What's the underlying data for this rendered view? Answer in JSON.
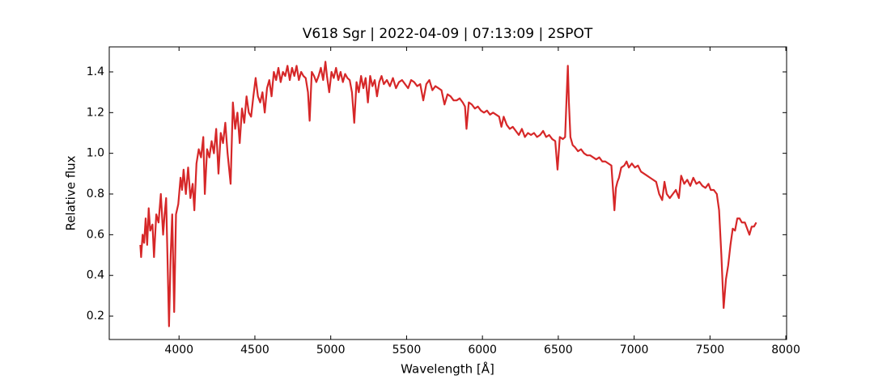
{
  "chart_data": {
    "type": "line",
    "title": "V618 Sgr | 2022-04-09 | 07:13:09 | 2SPOT",
    "xlabel": "Wavelength [Å]",
    "ylabel": "Relative flux",
    "color": "#d62728",
    "xlim": [
      3540,
      8005
    ],
    "ylim": [
      0.085,
      1.523
    ],
    "xticks": [
      4000,
      4500,
      5000,
      5500,
      6000,
      6500,
      7000,
      7500,
      8000
    ],
    "yticks": [
      0.2,
      0.4,
      0.6,
      0.8,
      {
        "value": 1,
        "label": "1.0"
      },
      1.2,
      1.4
    ],
    "x": [
      3745,
      3750,
      3760,
      3770,
      3780,
      3790,
      3800,
      3810,
      3825,
      3835,
      3850,
      3865,
      3880,
      3895,
      3905,
      3915,
      3925,
      3934,
      3945,
      3955,
      3968,
      3980,
      3995,
      4010,
      4020,
      4030,
      4045,
      4060,
      4075,
      4090,
      4101,
      4115,
      4130,
      4145,
      4160,
      4170,
      4185,
      4200,
      4215,
      4230,
      4245,
      4260,
      4275,
      4290,
      4305,
      4320,
      4340,
      4355,
      4370,
      4385,
      4400,
      4415,
      4430,
      4445,
      4460,
      4475,
      4490,
      4505,
      4520,
      4535,
      4550,
      4565,
      4580,
      4595,
      4610,
      4625,
      4640,
      4655,
      4670,
      4685,
      4700,
      4715,
      4730,
      4745,
      4760,
      4775,
      4790,
      4805,
      4820,
      4835,
      4850,
      4861,
      4875,
      4890,
      4905,
      4920,
      4935,
      4950,
      4965,
      4975,
      4990,
      5005,
      5020,
      5035,
      5050,
      5065,
      5080,
      5095,
      5110,
      5125,
      5140,
      5155,
      5170,
      5185,
      5200,
      5215,
      5230,
      5245,
      5260,
      5275,
      5290,
      5305,
      5320,
      5335,
      5350,
      5370,
      5390,
      5410,
      5430,
      5450,
      5470,
      5490,
      5510,
      5530,
      5550,
      5570,
      5590,
      5610,
      5630,
      5650,
      5670,
      5690,
      5710,
      5730,
      5750,
      5770,
      5790,
      5810,
      5830,
      5850,
      5870,
      5885,
      5895,
      5910,
      5930,
      5950,
      5970,
      5990,
      6010,
      6030,
      6050,
      6070,
      6090,
      6110,
      6125,
      6140,
      6160,
      6180,
      6200,
      6220,
      6240,
      6260,
      6280,
      6300,
      6320,
      6340,
      6360,
      6380,
      6400,
      6420,
      6440,
      6460,
      6480,
      6495,
      6510,
      6530,
      6545,
      6555,
      6563,
      6570,
      6580,
      6595,
      6610,
      6630,
      6650,
      6670,
      6690,
      6710,
      6730,
      6750,
      6770,
      6790,
      6810,
      6830,
      6850,
      6870,
      6880,
      6890,
      6900,
      6915,
      6935,
      6950,
      6965,
      6985,
      7005,
      7025,
      7045,
      7065,
      7085,
      7105,
      7125,
      7145,
      7165,
      7185,
      7200,
      7215,
      7235,
      7255,
      7275,
      7295,
      7310,
      7330,
      7350,
      7370,
      7390,
      7410,
      7430,
      7450,
      7470,
      7490,
      7505,
      7525,
      7545,
      7560,
      7575,
      7590,
      7605,
      7620,
      7635,
      7650,
      7665,
      7680,
      7695,
      7710,
      7730,
      7745,
      7760,
      7775,
      7790,
      7805
    ],
    "values": [
      0.55,
      0.49,
      0.6,
      0.56,
      0.68,
      0.55,
      0.73,
      0.62,
      0.65,
      0.49,
      0.7,
      0.66,
      0.8,
      0.6,
      0.7,
      0.78,
      0.45,
      0.15,
      0.5,
      0.7,
      0.22,
      0.7,
      0.75,
      0.88,
      0.82,
      0.92,
      0.8,
      0.93,
      0.78,
      0.85,
      0.72,
      0.95,
      1.02,
      0.98,
      1.08,
      0.8,
      1.02,
      0.98,
      1.06,
      1.0,
      1.12,
      0.9,
      1.1,
      1.05,
      1.15,
      1.0,
      0.85,
      1.25,
      1.12,
      1.2,
      1.05,
      1.22,
      1.15,
      1.28,
      1.2,
      1.18,
      1.28,
      1.37,
      1.28,
      1.25,
      1.3,
      1.2,
      1.32,
      1.36,
      1.28,
      1.4,
      1.36,
      1.42,
      1.35,
      1.4,
      1.38,
      1.43,
      1.36,
      1.42,
      1.38,
      1.43,
      1.36,
      1.4,
      1.38,
      1.37,
      1.3,
      1.16,
      1.4,
      1.38,
      1.35,
      1.38,
      1.42,
      1.36,
      1.45,
      1.38,
      1.3,
      1.4,
      1.37,
      1.42,
      1.36,
      1.4,
      1.35,
      1.39,
      1.37,
      1.36,
      1.3,
      1.15,
      1.35,
      1.3,
      1.38,
      1.32,
      1.37,
      1.25,
      1.38,
      1.33,
      1.36,
      1.28,
      1.35,
      1.38,
      1.34,
      1.36,
      1.33,
      1.37,
      1.32,
      1.35,
      1.36,
      1.34,
      1.32,
      1.36,
      1.35,
      1.33,
      1.34,
      1.26,
      1.34,
      1.36,
      1.31,
      1.33,
      1.32,
      1.31,
      1.24,
      1.29,
      1.28,
      1.26,
      1.26,
      1.27,
      1.25,
      1.23,
      1.12,
      1.25,
      1.24,
      1.22,
      1.23,
      1.21,
      1.2,
      1.21,
      1.19,
      1.2,
      1.19,
      1.18,
      1.13,
      1.18,
      1.14,
      1.12,
      1.13,
      1.11,
      1.09,
      1.12,
      1.08,
      1.1,
      1.09,
      1.1,
      1.08,
      1.09,
      1.11,
      1.08,
      1.09,
      1.07,
      1.06,
      0.92,
      1.08,
      1.07,
      1.08,
      1.28,
      1.43,
      1.25,
      1.08,
      1.04,
      1.03,
      1.01,
      1.02,
      1.0,
      0.99,
      0.99,
      0.98,
      0.97,
      0.98,
      0.96,
      0.96,
      0.95,
      0.94,
      0.72,
      0.83,
      0.86,
      0.88,
      0.93,
      0.94,
      0.96,
      0.93,
      0.95,
      0.93,
      0.94,
      0.91,
      0.9,
      0.89,
      0.88,
      0.87,
      0.86,
      0.8,
      0.77,
      0.86,
      0.8,
      0.78,
      0.8,
      0.82,
      0.78,
      0.89,
      0.85,
      0.87,
      0.84,
      0.88,
      0.85,
      0.86,
      0.84,
      0.83,
      0.85,
      0.82,
      0.82,
      0.8,
      0.72,
      0.5,
      0.24,
      0.38,
      0.45,
      0.55,
      0.63,
      0.62,
      0.68,
      0.68,
      0.66,
      0.66,
      0.63,
      0.6,
      0.64,
      0.64,
      0.66
    ]
  }
}
